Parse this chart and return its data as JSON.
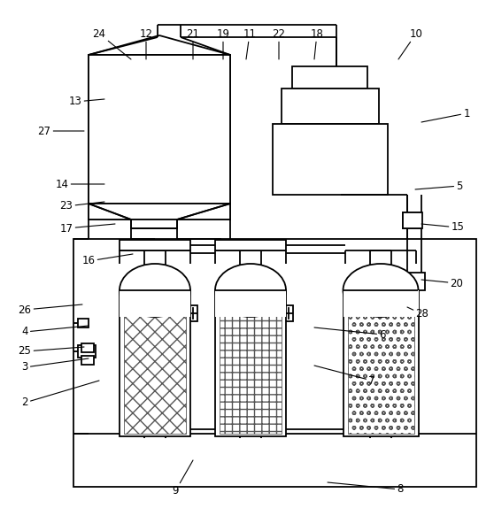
{
  "bg_color": "#ffffff",
  "line_color": "#000000",
  "figsize": [
    5.58,
    5.83
  ],
  "dpi": 100,
  "labels": [
    [
      "9",
      198,
      555,
      218,
      520
    ],
    [
      "2",
      28,
      455,
      112,
      430
    ],
    [
      "3",
      28,
      415,
      100,
      405
    ],
    [
      "25",
      28,
      397,
      95,
      392
    ],
    [
      "4",
      28,
      375,
      100,
      368
    ],
    [
      "26",
      28,
      350,
      93,
      344
    ],
    [
      "8",
      452,
      553,
      370,
      545
    ],
    [
      "7",
      420,
      430,
      355,
      413
    ],
    [
      "6",
      432,
      378,
      355,
      370
    ],
    [
      "28",
      477,
      355,
      460,
      347
    ],
    [
      "20",
      516,
      320,
      476,
      316
    ],
    [
      "15",
      517,
      257,
      476,
      253
    ],
    [
      "5",
      519,
      210,
      469,
      214
    ],
    [
      "1",
      527,
      128,
      476,
      138
    ],
    [
      "16",
      100,
      295,
      150,
      287
    ],
    [
      "17",
      75,
      258,
      130,
      253
    ],
    [
      "23",
      75,
      233,
      118,
      228
    ],
    [
      "14",
      70,
      208,
      118,
      208
    ],
    [
      "27",
      50,
      148,
      95,
      148
    ],
    [
      "13",
      85,
      115,
      118,
      112
    ],
    [
      "24",
      112,
      38,
      148,
      67
    ],
    [
      "12",
      165,
      38,
      165,
      67
    ],
    [
      "21",
      218,
      38,
      218,
      67
    ],
    [
      "19",
      252,
      38,
      252,
      67
    ],
    [
      "11",
      282,
      38,
      278,
      67
    ],
    [
      "22",
      315,
      38,
      315,
      67
    ],
    [
      "18",
      358,
      38,
      355,
      67
    ],
    [
      "10",
      470,
      38,
      450,
      67
    ]
  ]
}
